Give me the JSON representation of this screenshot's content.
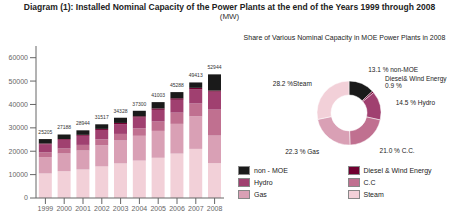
{
  "chart_data": [
    {
      "type": "bar",
      "stacked": true,
      "title": "Diagram (1): Installed Nominal Capacity of the Power Plants at the end of the Years 1999 through 2008",
      "subtitle": "(MW)",
      "categories": [
        "1999",
        "2000",
        "2001",
        "2002",
        "2003",
        "2004",
        "2005",
        "2006",
        "2007",
        "2008"
      ],
      "series": [
        {
          "name": "Steam",
          "color": "#f2d0d8",
          "values": [
            10500,
            11400,
            12200,
            13500,
            14800,
            16000,
            17200,
            19000,
            21000,
            14909
          ]
        },
        {
          "name": "Gas",
          "color": "#d9a0b5",
          "values": [
            7000,
            7600,
            8100,
            9000,
            9800,
            10600,
            11500,
            12700,
            13900,
            11782
          ]
        },
        {
          "name": "C.C",
          "color": "#c07090",
          "values": [
            2000,
            2200,
            2400,
            2600,
            2800,
            3200,
            4000,
            4800,
            5500,
            11102
          ]
        },
        {
          "name": "Hydro",
          "color": "#a04070",
          "values": [
            3500,
            3700,
            3900,
            4000,
            4200,
            4600,
            5000,
            5500,
            6000,
            7672
          ]
        },
        {
          "name": "Diesel & Wind Energy",
          "color": "#700030",
          "values": [
            300,
            350,
            400,
            450,
            500,
            550,
            600,
            650,
            700,
            476
          ]
        },
        {
          "name": "non - MOE",
          "color": "#1a1a1a",
          "values": [
            1905,
            1938,
            1944,
            1967,
            2228,
            2350,
            2703,
            2638,
            2313,
            6932
          ]
        }
      ],
      "totals": [
        25205,
        27188,
        28944,
        31517,
        34328,
        37300,
        41003,
        45288,
        49413,
        52944
      ],
      "ylim": [
        0,
        65000
      ],
      "yticks": [
        0,
        10000,
        20000,
        30000,
        40000,
        50000,
        60000
      ],
      "grid": false,
      "legend": "right"
    },
    {
      "type": "pie",
      "title": "Share of Various Nominal Capacity in MOE Power Plants in 2008",
      "values": [
        13.1,
        0.9,
        14.5,
        21.0,
        22.3,
        28.2
      ],
      "value_labels": [
        "13.1 % non-MOE",
        "Diesel& Wind Energy\n0.9 %",
        "14.5 %  Hydro",
        "21.0 %  C.C.",
        "22.3 % Gas",
        "28.2 %Steam"
      ],
      "colors": [
        "#1a1a1a",
        "#700030",
        "#a04070",
        "#c07090",
        "#d9a0b5",
        "#f2d0d8"
      ]
    }
  ]
}
